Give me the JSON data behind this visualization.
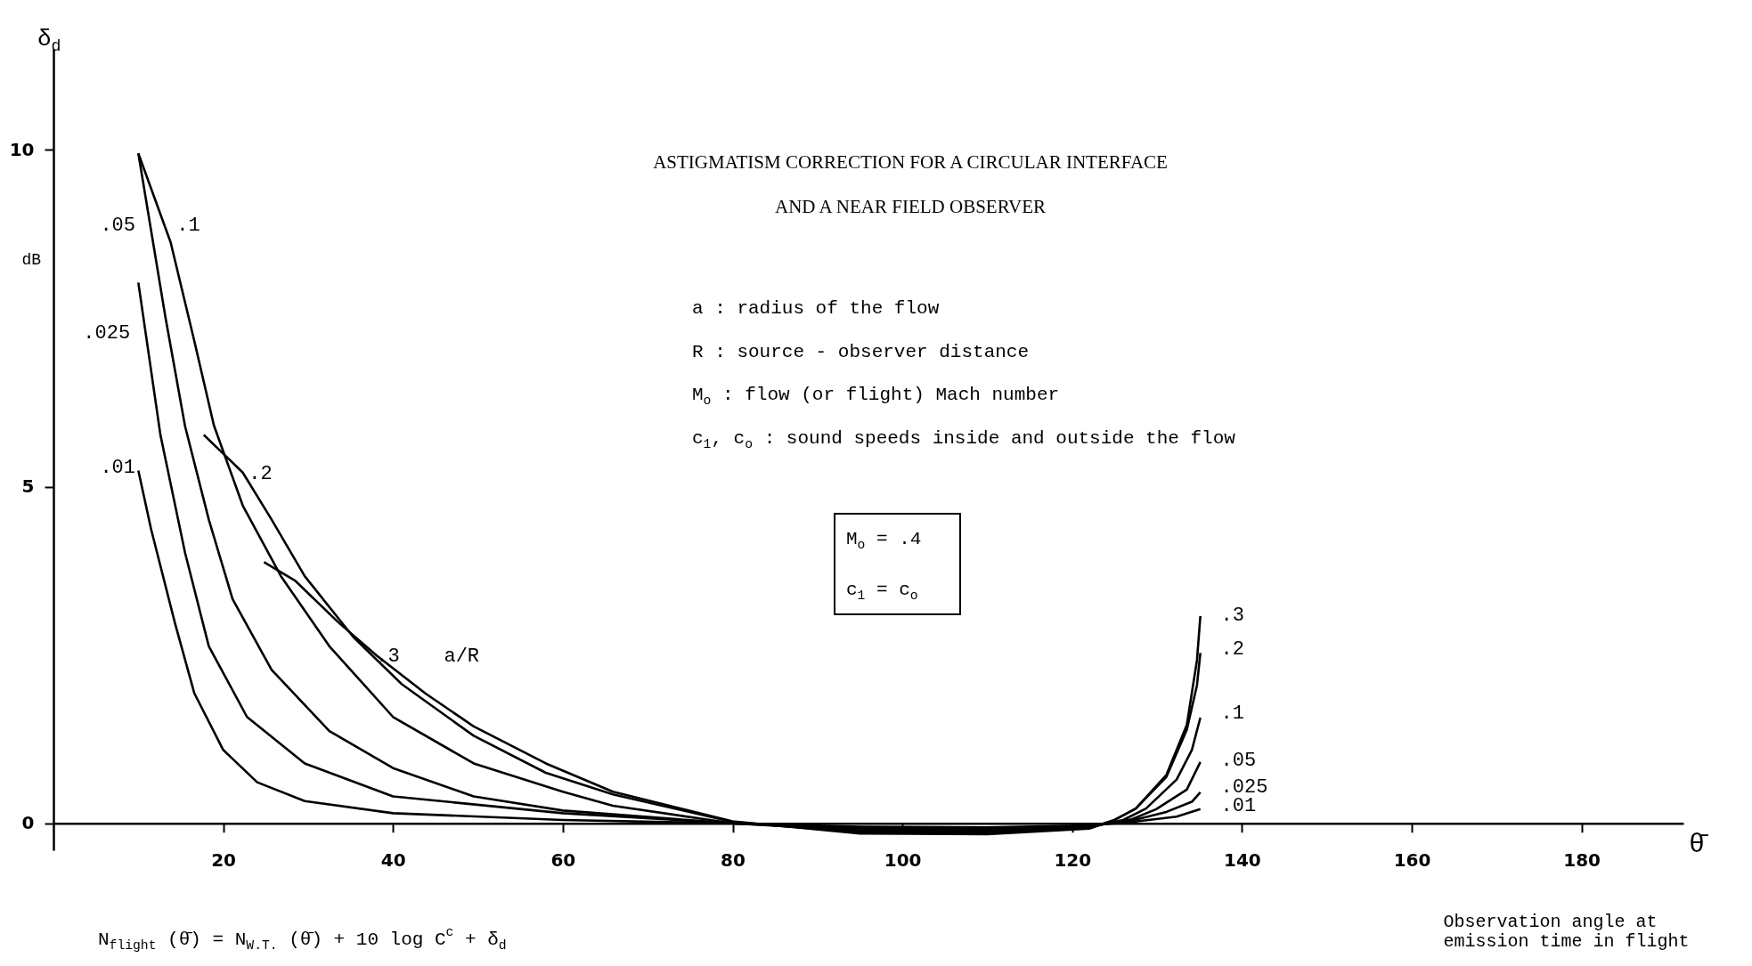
{
  "chart_data": {
    "type": "line",
    "title": "ASTIGMATISM CORRECTION FOR A CIRCULAR INTERFACE",
    "subtitle": "AND A NEAR FIELD OBSERVER",
    "ylabel": "δ$_{d}$",
    "xlabel": "Observation angle at emission time in flight",
    "xlim": [
      0,
      192
    ],
    "ylim": [
      -0.4,
      11.5
    ],
    "xticks": [
      20,
      40,
      60,
      80,
      100,
      120,
      140,
      160,
      180
    ],
    "yticks": [
      0,
      5,
      10
    ],
    "grid": false,
    "legend": false,
    "marker": "none",
    "line_style": "solid",
    "series": [
      {
        "color": "#000000",
        "x": [
          10,
          11.5,
          14.3,
          16.6,
          20,
          24,
          29.6,
          40,
          60,
          80,
          95,
          110,
          122,
          127,
          132.3,
          135.1
        ],
        "values": [
          5.24,
          4.37,
          2.98,
          1.93,
          1.09,
          0.61,
          0.33,
          0.15,
          0.05,
          0,
          -0.05,
          -0.06,
          -0.03,
          0.02,
          0.1,
          0.21
        ]
      },
      {
        "color": "#000000",
        "x": [
          10,
          12.6,
          15.5,
          18.3,
          22.8,
          29.6,
          40,
          60,
          80,
          95,
          110,
          122,
          127,
          131.1,
          134.1,
          135.1
        ],
        "values": [
          8.03,
          5.77,
          4.02,
          2.63,
          1.58,
          0.89,
          0.4,
          0.15,
          0,
          -0.07,
          -0.08,
          -0.04,
          0.04,
          0.17,
          0.32,
          0.46
        ]
      },
      {
        "color": "#000000",
        "x": [
          10,
          13.2,
          15.5,
          18.3,
          21.1,
          25.7,
          32.5,
          40,
          49.5,
          60,
          80,
          95,
          110,
          122,
          127,
          129.9,
          133.5,
          135.1
        ],
        "values": [
          9.95,
          7.51,
          5.9,
          4.51,
          3.33,
          2.28,
          1.37,
          0.82,
          0.4,
          0.19,
          0,
          -0.09,
          -0.1,
          -0.05,
          0.06,
          0.21,
          0.5,
          0.91
        ]
      },
      {
        "color": "#000000",
        "x": [
          10,
          13.8,
          16.6,
          18.9,
          22.3,
          26.8,
          32.5,
          40,
          49.5,
          60,
          65.9,
          80,
          95,
          110,
          122,
          126,
          128.7,
          132.3,
          134.1,
          135.1
        ],
        "values": [
          9.95,
          8.63,
          7.16,
          5.91,
          4.72,
          3.67,
          2.63,
          1.58,
          0.89,
          0.47,
          0.26,
          0,
          -0.11,
          -0.12,
          -0.06,
          0.05,
          0.22,
          0.65,
          1.09,
          1.57
        ]
      },
      {
        "color": "#000000",
        "x": [
          17.7,
          22.3,
          25.7,
          29.6,
          35.3,
          41,
          49.5,
          58,
          65.9,
          80,
          95,
          110,
          122,
          125,
          127.5,
          131.1,
          133.5,
          134.7,
          135.1
        ],
        "values": [
          5.77,
          5.21,
          4.51,
          3.67,
          2.77,
          2.07,
          1.3,
          0.75,
          0.43,
          0.02,
          -0.13,
          -0.14,
          -0.07,
          0.05,
          0.22,
          0.69,
          1.39,
          2.05,
          2.53
        ]
      },
      {
        "color": "#000000",
        "x": [
          24.8,
          28.5,
          33.6,
          38.1,
          43.8,
          49.5,
          58,
          65.9,
          80,
          95,
          110,
          122,
          125,
          127.5,
          131.1,
          133.5,
          134.7,
          135.1
        ],
        "values": [
          3.88,
          3.6,
          2.98,
          2.49,
          1.93,
          1.44,
          0.89,
          0.47,
          0.03,
          -0.15,
          -0.16,
          -0.08,
          0.05,
          0.22,
          0.72,
          1.46,
          2.42,
          3.08
        ]
      }
    ],
    "annotations": [
      "dB",
      "a  :  radius of the flow",
      "R  : source - observer distance",
      "M$_{o}$ : flow (or flight) Mach number",
      "c$_{1}$, c$_{o}$ : sound speeds inside and outside the flow",
      "M$_{o}$ = .4",
      "c$_{1}$ = c$_{o}$",
      "N$_{flight}$ (θ̄) = N$_{W.T.}$ (θ̄) + 10 log C$^{c}$ + δ$_{d}$",
      "θ̄",
      ".05",
      ".025",
      ".01",
      ".1",
      ".2",
      ".3",
      "a/R",
      ".3",
      ".2",
      ".1",
      ".05",
      ".025",
      ".01"
    ]
  }
}
